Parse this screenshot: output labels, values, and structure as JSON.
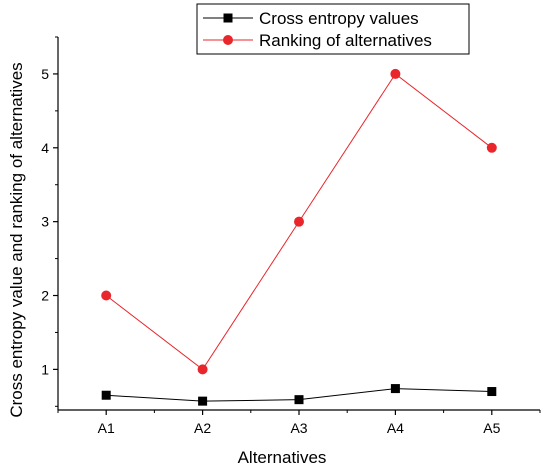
{
  "chart_data": {
    "type": "line",
    "title": "",
    "xlabel": "Alternatives",
    "ylabel": "Cross entropy value and ranking of alternatives",
    "categories": [
      "A1",
      "A2",
      "A3",
      "A4",
      "A5"
    ],
    "ylim": [
      0.45,
      5.5
    ],
    "yticks": [
      1,
      2,
      3,
      4,
      5
    ],
    "grid": false,
    "legend_position": "top",
    "series": [
      {
        "name": "Cross entropy values",
        "values": [
          0.65,
          0.57,
          0.59,
          0.74,
          0.7
        ],
        "color": "#000000",
        "marker": "square"
      },
      {
        "name": "Ranking of alternatives",
        "values": [
          2,
          1,
          3,
          5,
          4
        ],
        "color": "#e8262b",
        "marker": "circle"
      }
    ]
  }
}
